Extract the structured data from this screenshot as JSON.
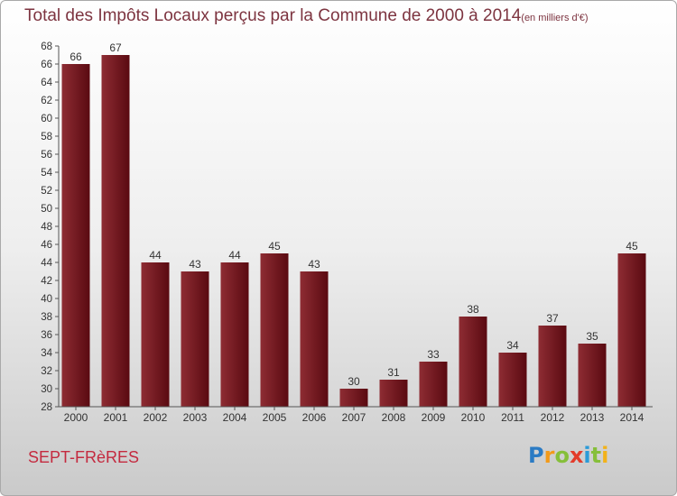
{
  "chart_data": {
    "type": "bar",
    "title": "Total des Impôts Locaux perçus par la Commune de 2000 à 2014",
    "unit": "(en milliers d'€)",
    "categories": [
      "2000",
      "2001",
      "2002",
      "2003",
      "2004",
      "2005",
      "2006",
      "2007",
      "2008",
      "2009",
      "2010",
      "2011",
      "2012",
      "2013",
      "2014"
    ],
    "values": [
      66,
      67,
      44,
      43,
      44,
      45,
      43,
      30,
      31,
      33,
      38,
      34,
      37,
      35,
      45
    ],
    "ylim": [
      28,
      68
    ],
    "yticks": [
      28,
      30,
      32,
      34,
      36,
      38,
      40,
      42,
      44,
      46,
      48,
      50,
      52,
      54,
      56,
      58,
      60,
      62,
      64,
      66,
      68
    ],
    "grid": false,
    "value_labels": true
  },
  "commune": "SEPT-FRèRES",
  "logo": {
    "text": "Proxiti",
    "letter_colors": [
      "#2b7bc4",
      "#f29a1a",
      "#86bf3a",
      "#e33b2a",
      "#2b9bd8",
      "#86bf3a",
      "#f2b21a"
    ]
  },
  "colors": {
    "bar_light": "#8e2c33",
    "bar_dark": "#5a0a11",
    "title": "#7d3440",
    "commune": "#c42a3f",
    "axis": "#555555"
  }
}
